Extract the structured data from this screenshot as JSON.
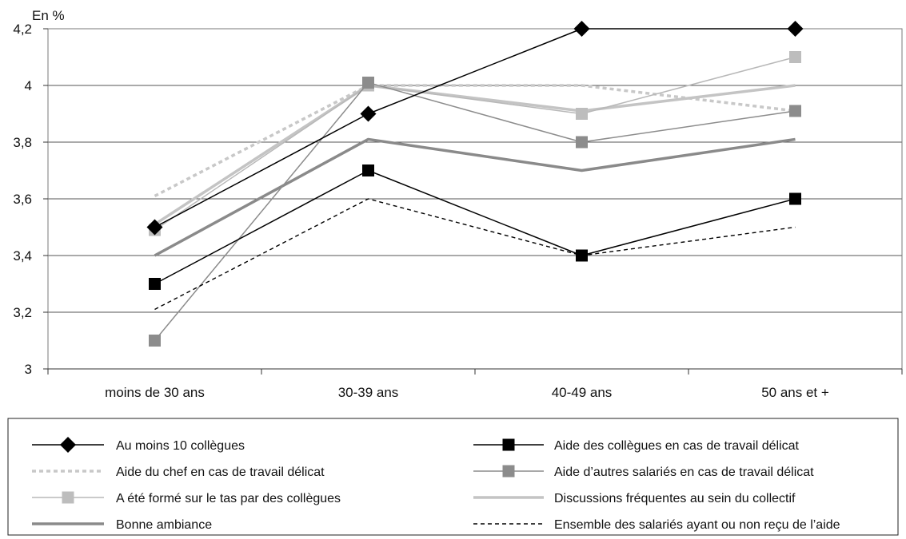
{
  "chart_data": {
    "type": "line",
    "ylabel": "En %",
    "categories": [
      "moins de 30 ans",
      "30-39 ans",
      "40-49 ans",
      "50 ans et +"
    ],
    "yticks": [
      "3",
      "3,2",
      "3,4",
      "3,6",
      "3,8",
      "4",
      "4,2"
    ],
    "ylim": [
      3,
      4.2
    ],
    "grid": true,
    "legend_position": "bottom",
    "series": [
      {
        "name": "Au moins 10 collègues",
        "values": [
          3.5,
          3.9,
          4.2,
          4.2
        ],
        "color": "#000000",
        "dash": "",
        "width": 1.5,
        "marker": "diamond",
        "marker_color": "#000000"
      },
      {
        "name": "Aide des collègues en cas de travail délicat",
        "values": [
          3.3,
          3.7,
          3.4,
          3.6
        ],
        "color": "#000000",
        "dash": "",
        "width": 1.5,
        "marker": "square",
        "marker_color": "#000000"
      },
      {
        "name": "Aide du chef en cas de travail délicat",
        "values": [
          3.61,
          4.0,
          4.0,
          3.91
        ],
        "color": "#c8c8c8",
        "dash": "5,4",
        "width": 3.5,
        "marker": "none",
        "marker_color": ""
      },
      {
        "name": "Aide d’autres salariés en cas de travail délicat",
        "values": [
          3.1,
          4.01,
          3.8,
          3.91
        ],
        "color": "#8c8c8c",
        "dash": "",
        "width": 1.5,
        "marker": "square",
        "marker_color": "#8c8c8c"
      },
      {
        "name": "A été formé sur le tas par des collègues",
        "values": [
          3.49,
          4.0,
          3.9,
          4.1
        ],
        "color": "#b8b8b8",
        "dash": "",
        "width": 1.5,
        "marker": "square",
        "marker_color": "#bdbdbd"
      },
      {
        "name": "Discussions fréquentes au sein du collectif",
        "values": [
          3.51,
          4.0,
          3.91,
          4.0
        ],
        "color": "#c4c4c4",
        "dash": "",
        "width": 3.5,
        "marker": "none",
        "marker_color": ""
      },
      {
        "name": "Bonne ambiance",
        "values": [
          3.4,
          3.81,
          3.7,
          3.81
        ],
        "color": "#8a8a8a",
        "dash": "",
        "width": 3.5,
        "marker": "none",
        "marker_color": ""
      },
      {
        "name": "Ensemble des salariés ayant ou non reçu de l’aide",
        "values": [
          3.21,
          3.6,
          3.4,
          3.5
        ],
        "color": "#000000",
        "dash": "5,4",
        "width": 1.4,
        "marker": "none",
        "marker_color": ""
      }
    ]
  }
}
